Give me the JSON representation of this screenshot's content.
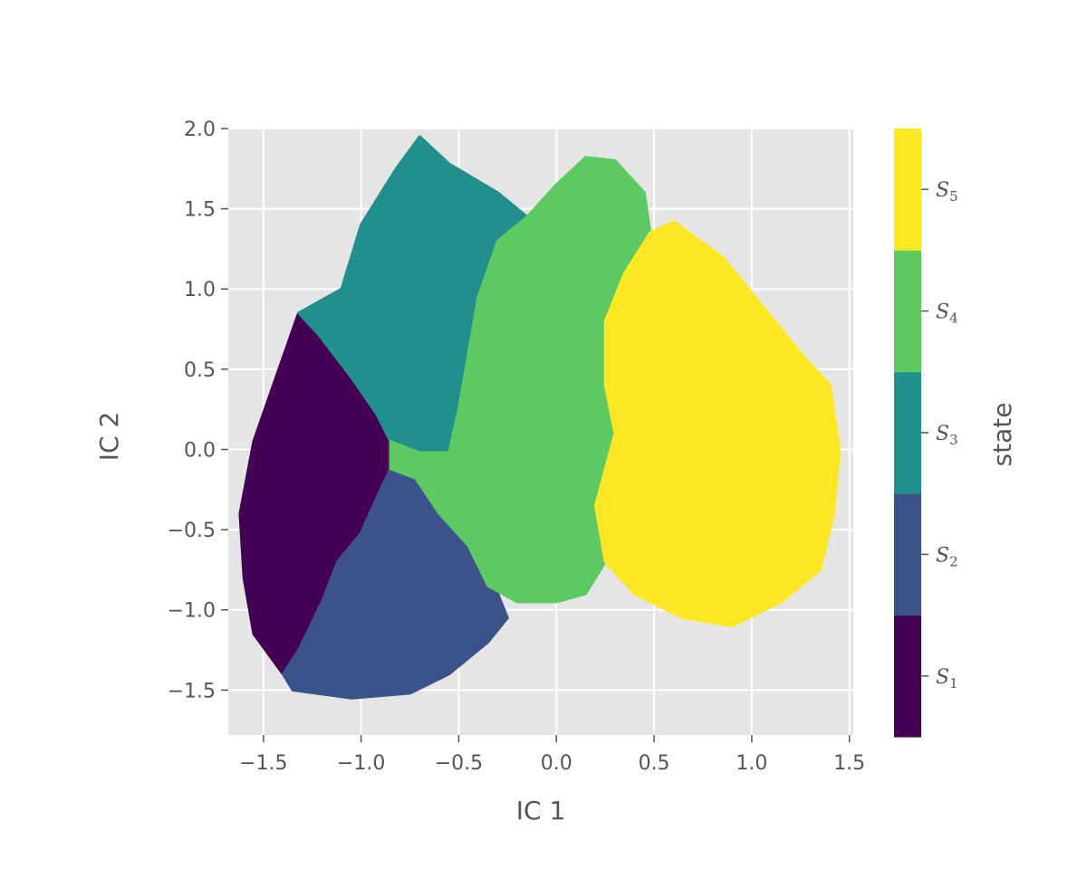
{
  "chart_data": {
    "type": "heatmap",
    "xlabel": "IC 1",
    "ylabel": "IC 2",
    "xlim": [
      -1.68,
      1.52
    ],
    "ylim": [
      -1.78,
      2.0
    ],
    "x_ticks": [
      -1.5,
      -1.0,
      -0.5,
      0.0,
      0.5,
      1.0,
      1.5
    ],
    "x_tick_labels": [
      "−1.5",
      "−1.0",
      "−0.5",
      "0.0",
      "0.5",
      "1.0",
      "1.5"
    ],
    "y_ticks": [
      -1.5,
      -1.0,
      -0.5,
      0.0,
      0.5,
      1.0,
      1.5,
      2.0
    ],
    "y_tick_labels": [
      "−1.5",
      "−1.0",
      "−0.5",
      "0.0",
      "0.5",
      "1.0",
      "1.5",
      "2.0"
    ],
    "grid": true,
    "background": "#e5e5e5",
    "colorbar": {
      "label": "state",
      "states": [
        {
          "base": "S",
          "sub": "1",
          "color": "#440154"
        },
        {
          "base": "S",
          "sub": "2",
          "color": "#3b528b"
        },
        {
          "base": "S",
          "sub": "3",
          "color": "#21908d"
        },
        {
          "base": "S",
          "sub": "4",
          "color": "#5dc963"
        },
        {
          "base": "S",
          "sub": "5",
          "color": "#fde725"
        }
      ]
    },
    "regions": [
      {
        "state": "S1",
        "polygon": [
          [
            -1.32,
            0.85
          ],
          [
            -1.22,
            0.72
          ],
          [
            -1.05,
            0.45
          ],
          [
            -0.92,
            0.22
          ],
          [
            -0.85,
            0.05
          ],
          [
            -0.85,
            -0.12
          ],
          [
            -0.92,
            -0.3
          ],
          [
            -1.0,
            -0.52
          ],
          [
            -1.12,
            -0.7
          ],
          [
            -1.2,
            -0.95
          ],
          [
            -1.32,
            -1.25
          ],
          [
            -1.4,
            -1.4
          ],
          [
            -1.55,
            -1.15
          ],
          [
            -1.6,
            -0.8
          ],
          [
            -1.62,
            -0.4
          ],
          [
            -1.55,
            0.05
          ],
          [
            -1.45,
            0.4
          ]
        ]
      },
      {
        "state": "S2",
        "polygon": [
          [
            -0.85,
            -0.12
          ],
          [
            -0.72,
            -0.18
          ],
          [
            -0.55,
            -0.38
          ],
          [
            -0.4,
            -0.6
          ],
          [
            -0.3,
            -0.9
          ],
          [
            -0.25,
            -1.05
          ],
          [
            -0.35,
            -1.2
          ],
          [
            -0.55,
            -1.4
          ],
          [
            -0.75,
            -1.52
          ],
          [
            -1.05,
            -1.55
          ],
          [
            -1.35,
            -1.5
          ],
          [
            -1.4,
            -1.4
          ],
          [
            -1.32,
            -1.25
          ],
          [
            -1.2,
            -0.95
          ],
          [
            -1.12,
            -0.7
          ],
          [
            -1.0,
            -0.52
          ],
          [
            -0.92,
            -0.3
          ]
        ]
      },
      {
        "state": "S3",
        "polygon": [
          [
            -1.1,
            1.0
          ],
          [
            -1.0,
            1.4
          ],
          [
            -0.82,
            1.75
          ],
          [
            -0.7,
            1.95
          ],
          [
            -0.55,
            1.78
          ],
          [
            -0.3,
            1.6
          ],
          [
            -0.15,
            1.45
          ],
          [
            -0.3,
            1.3
          ],
          [
            -0.4,
            0.95
          ],
          [
            -0.45,
            0.6
          ],
          [
            -0.5,
            0.25
          ],
          [
            -0.55,
            -0.02
          ],
          [
            -0.7,
            -0.02
          ],
          [
            -0.85,
            0.05
          ],
          [
            -0.92,
            0.22
          ],
          [
            -1.05,
            0.45
          ],
          [
            -1.22,
            0.72
          ],
          [
            -1.32,
            0.85
          ]
        ]
      },
      {
        "state": "S4",
        "polygon": [
          [
            -0.55,
            -0.02
          ],
          [
            -0.5,
            0.25
          ],
          [
            -0.45,
            0.6
          ],
          [
            -0.4,
            0.95
          ],
          [
            -0.3,
            1.3
          ],
          [
            -0.15,
            1.45
          ],
          [
            0.0,
            1.65
          ],
          [
            0.15,
            1.82
          ],
          [
            0.3,
            1.8
          ],
          [
            0.45,
            1.6
          ],
          [
            0.48,
            1.35
          ],
          [
            0.35,
            1.1
          ],
          [
            0.25,
            0.8
          ],
          [
            0.25,
            0.4
          ],
          [
            0.3,
            0.1
          ],
          [
            0.2,
            -0.35
          ],
          [
            0.25,
            -0.7
          ],
          [
            0.15,
            -0.9
          ],
          [
            0.0,
            -0.95
          ],
          [
            -0.2,
            -0.95
          ],
          [
            -0.35,
            -0.85
          ],
          [
            -0.45,
            -0.6
          ],
          [
            -0.6,
            -0.4
          ],
          [
            -0.72,
            -0.18
          ],
          [
            -0.85,
            -0.12
          ],
          [
            -0.85,
            0.05
          ],
          [
            -0.7,
            -0.02
          ]
        ]
      },
      {
        "state": "S5",
        "polygon": [
          [
            0.48,
            1.35
          ],
          [
            0.6,
            1.42
          ],
          [
            0.85,
            1.2
          ],
          [
            1.05,
            0.9
          ],
          [
            1.25,
            0.6
          ],
          [
            1.4,
            0.4
          ],
          [
            1.45,
            0.0
          ],
          [
            1.42,
            -0.4
          ],
          [
            1.35,
            -0.75
          ],
          [
            1.15,
            -0.95
          ],
          [
            0.9,
            -1.1
          ],
          [
            0.65,
            -1.05
          ],
          [
            0.4,
            -0.9
          ],
          [
            0.25,
            -0.7
          ],
          [
            0.2,
            -0.35
          ],
          [
            0.3,
            0.1
          ],
          [
            0.25,
            0.4
          ],
          [
            0.25,
            0.8
          ],
          [
            0.35,
            1.1
          ]
        ]
      }
    ]
  }
}
